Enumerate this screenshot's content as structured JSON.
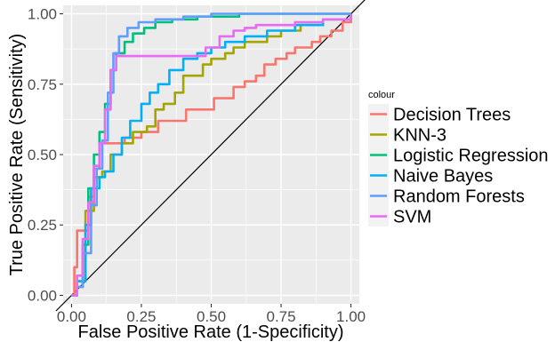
{
  "chart_data": {
    "type": "line",
    "xlabel": "False Positive Rate (1-Specificity)",
    "ylabel": "True Positive Rate (Sensitivity)",
    "xlim": [
      -0.03,
      1.03
    ],
    "ylim": [
      -0.03,
      1.03
    ],
    "x_ticks": [
      0,
      0.25,
      0.5,
      0.75,
      1
    ],
    "x_tick_labels": [
      "0.00",
      "0.25",
      "0.50",
      "0.75",
      "1.00"
    ],
    "y_ticks": [
      0,
      0.25,
      0.5,
      0.75,
      1
    ],
    "y_tick_labels": [
      "0.00",
      "0.25",
      "0.50",
      "0.75",
      "1.00"
    ],
    "grid": true,
    "panel_background": "#ebebeb",
    "legend_title": "colour",
    "legend_position": "right",
    "reference_line": {
      "points": [
        [
          -0.03,
          -0.03
        ],
        [
          1.03,
          1.03
        ]
      ],
      "color": "#000000"
    },
    "series": [
      {
        "name": "Decision Trees",
        "color": "#f8766d",
        "points": [
          [
            0.0,
            0.0
          ],
          [
            0.01,
            0.1
          ],
          [
            0.02,
            0.23
          ],
          [
            0.05,
            0.23
          ],
          [
            0.06,
            0.35
          ],
          [
            0.08,
            0.45
          ],
          [
            0.1,
            0.54
          ],
          [
            0.14,
            0.54
          ],
          [
            0.17,
            0.54
          ],
          [
            0.19,
            0.56
          ],
          [
            0.25,
            0.58
          ],
          [
            0.29,
            0.58
          ],
          [
            0.31,
            0.62
          ],
          [
            0.38,
            0.62
          ],
          [
            0.41,
            0.66
          ],
          [
            0.47,
            0.66
          ],
          [
            0.51,
            0.7
          ],
          [
            0.56,
            0.7
          ],
          [
            0.58,
            0.74
          ],
          [
            0.62,
            0.76
          ],
          [
            0.66,
            0.78
          ],
          [
            0.69,
            0.82
          ],
          [
            0.73,
            0.84
          ],
          [
            0.77,
            0.86
          ],
          [
            0.8,
            0.88
          ],
          [
            0.86,
            0.9
          ],
          [
            0.89,
            0.92
          ],
          [
            0.93,
            0.94
          ],
          [
            0.97,
            0.97
          ],
          [
            1.0,
            1.0
          ]
        ]
      },
      {
        "name": "KNN-3",
        "color": "#a3a500",
        "points": [
          [
            0.0,
            0.0
          ],
          [
            0.02,
            0.05
          ],
          [
            0.05,
            0.3
          ],
          [
            0.08,
            0.42
          ],
          [
            0.11,
            0.44
          ],
          [
            0.14,
            0.5
          ],
          [
            0.18,
            0.54
          ],
          [
            0.22,
            0.58
          ],
          [
            0.27,
            0.6
          ],
          [
            0.3,
            0.66
          ],
          [
            0.33,
            0.68
          ],
          [
            0.37,
            0.72
          ],
          [
            0.4,
            0.78
          ],
          [
            0.45,
            0.78
          ],
          [
            0.47,
            0.82
          ],
          [
            0.5,
            0.84
          ],
          [
            0.55,
            0.86
          ],
          [
            0.58,
            0.88
          ],
          [
            0.62,
            0.9
          ],
          [
            0.7,
            0.92
          ],
          [
            0.75,
            0.94
          ],
          [
            0.82,
            0.96
          ],
          [
            0.9,
            0.98
          ],
          [
            1.0,
            1.0
          ]
        ]
      },
      {
        "name": "Logistic Regression",
        "color": "#00bf7d",
        "points": [
          [
            0.0,
            0.0
          ],
          [
            0.02,
            0.03
          ],
          [
            0.04,
            0.18
          ],
          [
            0.06,
            0.38
          ],
          [
            0.08,
            0.5
          ],
          [
            0.1,
            0.58
          ],
          [
            0.12,
            0.68
          ],
          [
            0.14,
            0.8
          ],
          [
            0.16,
            0.86
          ],
          [
            0.19,
            0.9
          ],
          [
            0.22,
            0.93
          ],
          [
            0.26,
            0.95
          ],
          [
            0.3,
            0.97
          ],
          [
            0.36,
            0.98
          ],
          [
            0.45,
            0.99
          ],
          [
            0.6,
            1.0
          ],
          [
            1.0,
            1.0
          ]
        ]
      },
      {
        "name": "Naive Bayes",
        "color": "#00b0f6",
        "points": [
          [
            0.0,
            0.0
          ],
          [
            0.02,
            0.05
          ],
          [
            0.05,
            0.25
          ],
          [
            0.07,
            0.38
          ],
          [
            0.1,
            0.42
          ],
          [
            0.12,
            0.44
          ],
          [
            0.15,
            0.5
          ],
          [
            0.18,
            0.56
          ],
          [
            0.21,
            0.62
          ],
          [
            0.25,
            0.68
          ],
          [
            0.28,
            0.72
          ],
          [
            0.31,
            0.75
          ],
          [
            0.35,
            0.8
          ],
          [
            0.4,
            0.84
          ],
          [
            0.45,
            0.86
          ],
          [
            0.5,
            0.88
          ],
          [
            0.55,
            0.9
          ],
          [
            0.62,
            0.92
          ],
          [
            0.7,
            0.94
          ],
          [
            0.8,
            0.96
          ],
          [
            0.9,
            0.98
          ],
          [
            1.0,
            1.0
          ]
        ]
      },
      {
        "name": "Random Forests",
        "color": "#619cff",
        "points": [
          [
            0.0,
            0.0
          ],
          [
            0.02,
            0.03
          ],
          [
            0.04,
            0.15
          ],
          [
            0.07,
            0.32
          ],
          [
            0.09,
            0.45
          ],
          [
            0.11,
            0.55
          ],
          [
            0.13,
            0.72
          ],
          [
            0.15,
            0.86
          ],
          [
            0.17,
            0.92
          ],
          [
            0.2,
            0.95
          ],
          [
            0.24,
            0.97
          ],
          [
            0.3,
            0.98
          ],
          [
            0.4,
            0.99
          ],
          [
            0.5,
            1.0
          ],
          [
            1.0,
            1.0
          ]
        ]
      },
      {
        "name": "SVM",
        "color": "#e76bf3",
        "points": [
          [
            0.0,
            0.0
          ],
          [
            0.02,
            0.07
          ],
          [
            0.04,
            0.2
          ],
          [
            0.06,
            0.33
          ],
          [
            0.08,
            0.46
          ],
          [
            0.1,
            0.54
          ],
          [
            0.12,
            0.66
          ],
          [
            0.14,
            0.8
          ],
          [
            0.16,
            0.85
          ],
          [
            0.2,
            0.85
          ],
          [
            0.3,
            0.85
          ],
          [
            0.44,
            0.85
          ],
          [
            0.48,
            0.88
          ],
          [
            0.53,
            0.92
          ],
          [
            0.58,
            0.94
          ],
          [
            0.62,
            0.95
          ],
          [
            0.66,
            0.96
          ],
          [
            0.7,
            0.96
          ],
          [
            0.8,
            0.97
          ],
          [
            0.9,
            0.98
          ],
          [
            1.0,
            1.0
          ]
        ]
      }
    ]
  }
}
